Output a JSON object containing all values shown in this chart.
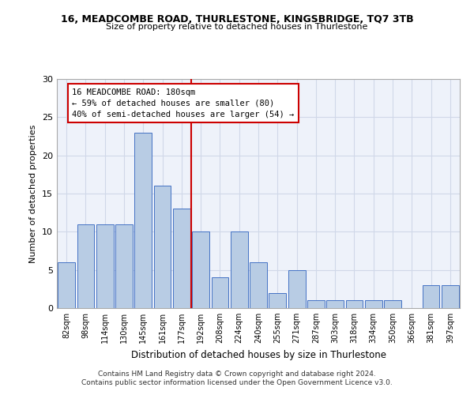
{
  "title": "16, MEADCOMBE ROAD, THURLESTONE, KINGSBRIDGE, TQ7 3TB",
  "subtitle": "Size of property relative to detached houses in Thurlestone",
  "xlabel": "Distribution of detached houses by size in Thurlestone",
  "ylabel": "Number of detached properties",
  "categories": [
    "82sqm",
    "98sqm",
    "114sqm",
    "130sqm",
    "145sqm",
    "161sqm",
    "177sqm",
    "192sqm",
    "208sqm",
    "224sqm",
    "240sqm",
    "255sqm",
    "271sqm",
    "287sqm",
    "303sqm",
    "318sqm",
    "334sqm",
    "350sqm",
    "366sqm",
    "381sqm",
    "397sqm"
  ],
  "values": [
    6,
    11,
    11,
    11,
    23,
    16,
    13,
    10,
    4,
    10,
    6,
    2,
    5,
    1,
    1,
    1,
    1,
    1,
    0,
    3,
    3
  ],
  "bar_color": "#b8cce4",
  "bar_edge_color": "#4472c4",
  "vline_x_index": 6.5,
  "annotation_lines": [
    "16 MEADCOMBE ROAD: 180sqm",
    "← 59% of detached houses are smaller (80)",
    "40% of semi-detached houses are larger (54) →"
  ],
  "annotation_box_color": "#ffffff",
  "annotation_box_edge": "#cc0000",
  "vline_color": "#cc0000",
  "ylim": [
    0,
    30
  ],
  "yticks": [
    0,
    5,
    10,
    15,
    20,
    25,
    30
  ],
  "grid_color": "#d0d8e8",
  "background_color": "#eef2fa",
  "footer1": "Contains HM Land Registry data © Crown copyright and database right 2024.",
  "footer2": "Contains public sector information licensed under the Open Government Licence v3.0."
}
